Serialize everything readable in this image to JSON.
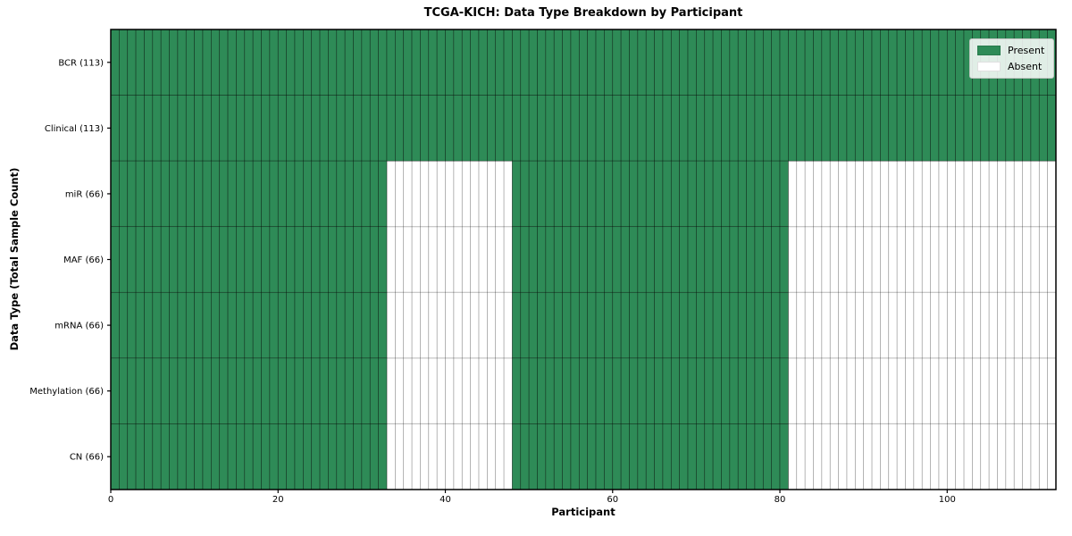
{
  "chart_data": {
    "type": "heatmap",
    "title": "TCGA-KICH: Data Type Breakdown by Participant",
    "xlabel": "Participant",
    "ylabel": "Data Type (Total Sample Count)",
    "x_ticks": [
      0,
      20,
      40,
      60,
      80,
      100
    ],
    "x_range": [
      0,
      113
    ],
    "n_participants": 113,
    "grid": true,
    "legend_position": "upper right",
    "rows": [
      {
        "label": "BCR (113)",
        "count": 113,
        "present_ranges": [
          [
            0,
            113
          ]
        ]
      },
      {
        "label": "Clinical (113)",
        "count": 113,
        "present_ranges": [
          [
            0,
            113
          ]
        ]
      },
      {
        "label": "miR (66)",
        "count": 66,
        "present_ranges": [
          [
            0,
            33
          ],
          [
            48,
            81
          ]
        ]
      },
      {
        "label": "MAF (66)",
        "count": 66,
        "present_ranges": [
          [
            0,
            33
          ],
          [
            48,
            81
          ]
        ]
      },
      {
        "label": "mRNA (66)",
        "count": 66,
        "present_ranges": [
          [
            0,
            33
          ],
          [
            48,
            81
          ]
        ]
      },
      {
        "label": "Methylation (66)",
        "count": 66,
        "present_ranges": [
          [
            0,
            33
          ],
          [
            48,
            81
          ]
        ]
      },
      {
        "label": "CN (66)",
        "count": 66,
        "present_ranges": [
          [
            0,
            33
          ],
          [
            48,
            81
          ]
        ]
      }
    ],
    "legend": [
      {
        "label": "Present",
        "color": "#2e8b57"
      },
      {
        "label": "Absent",
        "color": "#ffffff"
      }
    ],
    "colors": {
      "present": "#2e8b57",
      "absent": "#ffffff",
      "cell_edge": "rgba(0,0,0,0.5)",
      "grid_vertical": "rgba(0,0,0,0.45)",
      "row_separator": "rgba(0,0,0,0.28)",
      "spine": "#000000",
      "tick_label": "#000000"
    }
  }
}
